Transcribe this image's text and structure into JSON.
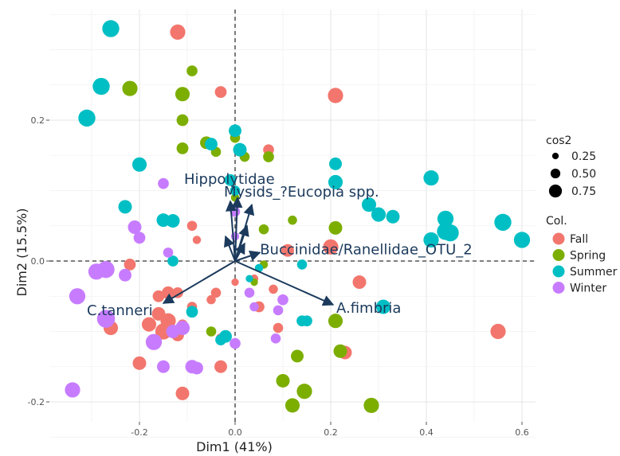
{
  "chart_data": {
    "type": "scatter",
    "title": "",
    "xlabel": "Dim1 (41%)",
    "ylabel": "Dim2 (15.5%)",
    "xlim": [
      -0.39,
      0.65
    ],
    "ylim": [
      -0.275,
      0.375
    ],
    "x_ticks": [
      -0.2,
      0.0,
      0.2,
      0.4,
      0.6
    ],
    "x_tick_labels": [
      "-0.2",
      "0.0",
      "0.2",
      "0.4",
      "0.6"
    ],
    "y_ticks": [
      -0.2,
      0.0,
      0.2
    ],
    "y_tick_labels": [
      "-0.2",
      "0.0",
      "0.2"
    ],
    "grid": true,
    "reference_lines": {
      "x": 0,
      "y": 0,
      "style": "dashed"
    },
    "colors": {
      "Fall": "#F2766D",
      "Spring": "#7CAE00",
      "Summer": "#00BFC4",
      "Winter": "#C77CFF",
      "arrow": "#1b3a5c"
    },
    "legend_size": {
      "title": "cos2",
      "values": [
        0.25,
        0.5,
        0.75
      ],
      "labels": [
        "0.25",
        "0.50",
        "0.75"
      ]
    },
    "legend_color": {
      "title": "Col.",
      "entries": [
        "Fall",
        "Spring",
        "Summer",
        "Winter"
      ]
    },
    "legend_position": "right",
    "arrows": [
      {
        "label": "Hippolytidae",
        "x": -0.01,
        "y": 0.085,
        "show_label": true
      },
      {
        "label": "Mysids_?Eucopia spp.",
        "x": 0.035,
        "y": 0.08,
        "show_label": true
      },
      {
        "label": "",
        "x": 0.005,
        "y": 0.09,
        "show_label": false
      },
      {
        "label": "",
        "x": 0.025,
        "y": 0.05,
        "show_label": false
      },
      {
        "label": "",
        "x": -0.02,
        "y": 0.035,
        "show_label": false
      },
      {
        "label": "",
        "x": 0.02,
        "y": 0.025,
        "show_label": false
      },
      {
        "label": "Buccinidae/Ranellidae_OTU_2",
        "x": 0.052,
        "y": 0.012,
        "show_label": true
      },
      {
        "label": "C.tanneri",
        "x": -0.15,
        "y": -0.06,
        "show_label": true
      },
      {
        "label": "A.fimbria",
        "x": 0.205,
        "y": -0.062,
        "show_label": true
      }
    ],
    "series": [
      {
        "name": "Fall",
        "points": [
          {
            "x": -0.12,
            "y": 0.325,
            "cos2": 0.6
          },
          {
            "x": -0.03,
            "y": 0.24,
            "cos2": 0.4
          },
          {
            "x": 0.21,
            "y": 0.235,
            "cos2": 0.6
          },
          {
            "x": 0.07,
            "y": 0.158,
            "cos2": 0.35
          },
          {
            "x": -0.09,
            "y": 0.05,
            "cos2": 0.3
          },
          {
            "x": 0.2,
            "y": 0.02,
            "cos2": 0.6
          },
          {
            "x": 0.11,
            "y": 0.015,
            "cos2": 0.45
          },
          {
            "x": -0.22,
            "y": -0.005,
            "cos2": 0.4
          },
          {
            "x": 0.26,
            "y": -0.03,
            "cos2": 0.5
          },
          {
            "x": -0.14,
            "y": -0.045,
            "cos2": 0.45
          },
          {
            "x": -0.12,
            "y": -0.045,
            "cos2": 0.35
          },
          {
            "x": -0.16,
            "y": -0.05,
            "cos2": 0.4
          },
          {
            "x": -0.04,
            "y": -0.045,
            "cos2": 0.3
          },
          {
            "x": -0.05,
            "y": -0.055,
            "cos2": 0.25
          },
          {
            "x": 0.08,
            "y": -0.04,
            "cos2": 0.25
          },
          {
            "x": -0.09,
            "y": -0.065,
            "cos2": 0.3
          },
          {
            "x": -0.16,
            "y": -0.075,
            "cos2": 0.5
          },
          {
            "x": 0.05,
            "y": -0.065,
            "cos2": 0.35
          },
          {
            "x": -0.14,
            "y": -0.085,
            "cos2": 0.6
          },
          {
            "x": -0.18,
            "y": -0.09,
            "cos2": 0.55
          },
          {
            "x": -0.26,
            "y": -0.095,
            "cos2": 0.55
          },
          {
            "x": -0.11,
            "y": -0.09,
            "cos2": 0.3
          },
          {
            "x": -0.15,
            "y": -0.1,
            "cos2": 0.65
          },
          {
            "x": 0.09,
            "y": -0.095,
            "cos2": 0.3
          },
          {
            "x": -0.12,
            "y": -0.105,
            "cos2": 0.45
          },
          {
            "x": -0.03,
            "y": -0.11,
            "cos2": 0.3
          },
          {
            "x": 0.23,
            "y": -0.13,
            "cos2": 0.5
          },
          {
            "x": -0.2,
            "y": -0.145,
            "cos2": 0.5
          },
          {
            "x": -0.03,
            "y": -0.15,
            "cos2": 0.45
          },
          {
            "x": -0.11,
            "y": -0.188,
            "cos2": 0.5
          },
          {
            "x": 0.55,
            "y": -0.1,
            "cos2": 0.6
          },
          {
            "x": 0.04,
            "y": -0.025,
            "cos2": 0.2
          },
          {
            "x": 0.0,
            "y": -0.03,
            "cos2": 0.15
          },
          {
            "x": -0.08,
            "y": 0.03,
            "cos2": 0.2
          }
        ]
      },
      {
        "name": "Spring",
        "points": [
          {
            "x": -0.09,
            "y": 0.27,
            "cos2": 0.35
          },
          {
            "x": -0.22,
            "y": 0.245,
            "cos2": 0.6
          },
          {
            "x": -0.11,
            "y": 0.237,
            "cos2": 0.55
          },
          {
            "x": -0.11,
            "y": 0.2,
            "cos2": 0.4
          },
          {
            "x": -0.06,
            "y": 0.168,
            "cos2": 0.45
          },
          {
            "x": -0.11,
            "y": 0.16,
            "cos2": 0.4
          },
          {
            "x": 0.07,
            "y": 0.148,
            "cos2": 0.35
          },
          {
            "x": -0.04,
            "y": 0.155,
            "cos2": 0.3
          },
          {
            "x": 0.02,
            "y": 0.148,
            "cos2": 0.3
          },
          {
            "x": 0.12,
            "y": 0.058,
            "cos2": 0.25
          },
          {
            "x": 0.21,
            "y": 0.047,
            "cos2": 0.5
          },
          {
            "x": 0.06,
            "y": 0.045,
            "cos2": 0.3
          },
          {
            "x": 0.06,
            "y": -0.005,
            "cos2": 0.2
          },
          {
            "x": -0.05,
            "y": -0.1,
            "cos2": 0.3
          },
          {
            "x": 0.21,
            "y": -0.085,
            "cos2": 0.55
          },
          {
            "x": 0.22,
            "y": -0.128,
            "cos2": 0.5
          },
          {
            "x": 0.13,
            "y": -0.135,
            "cos2": 0.45
          },
          {
            "x": 0.1,
            "y": -0.17,
            "cos2": 0.5
          },
          {
            "x": 0.145,
            "y": -0.185,
            "cos2": 0.6
          },
          {
            "x": 0.12,
            "y": -0.205,
            "cos2": 0.55
          },
          {
            "x": 0.285,
            "y": -0.205,
            "cos2": 0.6
          },
          {
            "x": 0.0,
            "y": 0.09,
            "cos2": 0.2
          },
          {
            "x": 0.04,
            "y": -0.03,
            "cos2": 0.15
          },
          {
            "x": 0.0,
            "y": 0.175,
            "cos2": 0.3
          }
        ]
      },
      {
        "name": "Summer",
        "points": [
          {
            "x": -0.26,
            "y": 0.33,
            "cos2": 0.7
          },
          {
            "x": -0.28,
            "y": 0.248,
            "cos2": 0.7
          },
          {
            "x": -0.31,
            "y": 0.203,
            "cos2": 0.7
          },
          {
            "x": -0.2,
            "y": 0.137,
            "cos2": 0.55
          },
          {
            "x": 0.0,
            "y": 0.185,
            "cos2": 0.45
          },
          {
            "x": -0.05,
            "y": 0.166,
            "cos2": 0.45
          },
          {
            "x": 0.01,
            "y": 0.158,
            "cos2": 0.5
          },
          {
            "x": -0.01,
            "y": 0.115,
            "cos2": 0.4
          },
          {
            "x": 0.21,
            "y": 0.138,
            "cos2": 0.45
          },
          {
            "x": 0.21,
            "y": 0.112,
            "cos2": 0.55
          },
          {
            "x": 0.41,
            "y": 0.118,
            "cos2": 0.6
          },
          {
            "x": -0.23,
            "y": 0.077,
            "cos2": 0.5
          },
          {
            "x": 0.28,
            "y": 0.08,
            "cos2": 0.55
          },
          {
            "x": 0.3,
            "y": 0.066,
            "cos2": 0.55
          },
          {
            "x": 0.33,
            "y": 0.063,
            "cos2": 0.5
          },
          {
            "x": -0.15,
            "y": 0.058,
            "cos2": 0.5
          },
          {
            "x": -0.13,
            "y": 0.057,
            "cos2": 0.5
          },
          {
            "x": 0.44,
            "y": 0.06,
            "cos2": 0.65
          },
          {
            "x": 0.44,
            "y": 0.042,
            "cos2": 0.7
          },
          {
            "x": 0.45,
            "y": 0.04,
            "cos2": 0.7
          },
          {
            "x": 0.56,
            "y": 0.055,
            "cos2": 0.7
          },
          {
            "x": 0.41,
            "y": 0.03,
            "cos2": 0.6
          },
          {
            "x": 0.6,
            "y": 0.03,
            "cos2": 0.65
          },
          {
            "x": -0.13,
            "y": 0.0,
            "cos2": 0.35
          },
          {
            "x": 0.14,
            "y": -0.005,
            "cos2": 0.3
          },
          {
            "x": 0.05,
            "y": -0.01,
            "cos2": 0.2
          },
          {
            "x": 0.14,
            "y": -0.085,
            "cos2": 0.35
          },
          {
            "x": -0.09,
            "y": -0.072,
            "cos2": 0.4
          },
          {
            "x": 0.31,
            "y": -0.065,
            "cos2": 0.55
          },
          {
            "x": 0.15,
            "y": -0.085,
            "cos2": 0.35
          },
          {
            "x": -0.02,
            "y": -0.107,
            "cos2": 0.45
          },
          {
            "x": -0.03,
            "y": -0.112,
            "cos2": 0.35
          },
          {
            "x": 0.03,
            "y": -0.025,
            "cos2": 0.15
          },
          {
            "x": 0.0,
            "y": 0.1,
            "cos2": 0.3
          }
        ]
      },
      {
        "name": "Winter",
        "points": [
          {
            "x": -0.15,
            "y": 0.11,
            "cos2": 0.35
          },
          {
            "x": 0.0,
            "y": 0.07,
            "cos2": 0.3
          },
          {
            "x": -0.21,
            "y": 0.048,
            "cos2": 0.5
          },
          {
            "x": -0.2,
            "y": 0.033,
            "cos2": 0.4
          },
          {
            "x": -0.14,
            "y": 0.012,
            "cos2": 0.3
          },
          {
            "x": -0.27,
            "y": -0.012,
            "cos2": 0.7
          },
          {
            "x": -0.29,
            "y": -0.015,
            "cos2": 0.65
          },
          {
            "x": -0.23,
            "y": -0.02,
            "cos2": 0.45
          },
          {
            "x": 0.03,
            "y": -0.045,
            "cos2": 0.3
          },
          {
            "x": -0.33,
            "y": -0.05,
            "cos2": 0.65
          },
          {
            "x": 0.1,
            "y": -0.055,
            "cos2": 0.35
          },
          {
            "x": 0.09,
            "y": -0.07,
            "cos2": 0.3
          },
          {
            "x": 0.04,
            "y": -0.065,
            "cos2": 0.25
          },
          {
            "x": -0.27,
            "y": -0.082,
            "cos2": 0.75
          },
          {
            "x": -0.11,
            "y": -0.095,
            "cos2": 0.55
          },
          {
            "x": -0.13,
            "y": -0.1,
            "cos2": 0.5
          },
          {
            "x": -0.17,
            "y": -0.115,
            "cos2": 0.65
          },
          {
            "x": 0.0,
            "y": -0.117,
            "cos2": 0.35
          },
          {
            "x": 0.085,
            "y": -0.11,
            "cos2": 0.3
          },
          {
            "x": -0.15,
            "y": -0.15,
            "cos2": 0.45
          },
          {
            "x": -0.09,
            "y": -0.15,
            "cos2": 0.5
          },
          {
            "x": -0.08,
            "y": -0.152,
            "cos2": 0.45
          },
          {
            "x": -0.34,
            "y": -0.183,
            "cos2": 0.6
          },
          {
            "x": 0.0,
            "y": 0.035,
            "cos2": 0.2
          }
        ]
      }
    ]
  }
}
